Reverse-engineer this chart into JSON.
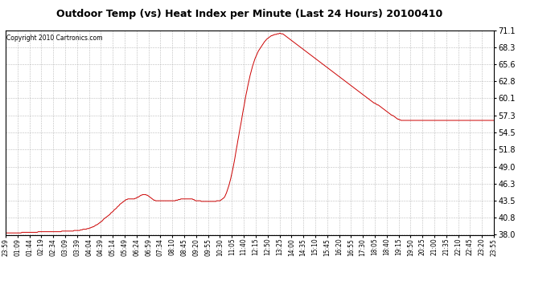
{
  "title": "Outdoor Temp (vs) Heat Index per Minute (Last 24 Hours) 20100410",
  "copyright_text": "Copyright 2010 Cartronics.com",
  "yticks": [
    38.0,
    40.8,
    43.5,
    46.3,
    49.0,
    51.8,
    54.5,
    57.3,
    60.1,
    62.8,
    65.6,
    68.3,
    71.1
  ],
  "ymin": 38.0,
  "ymax": 71.1,
  "line_color": "#cc0000",
  "background_color": "#ffffff",
  "grid_color": "#aaaaaa",
  "xtick_labels": [
    "23:59",
    "01:09",
    "01:44",
    "02:19",
    "02:34",
    "03:09",
    "03:39",
    "04:04",
    "04:39",
    "05:14",
    "05:49",
    "06:24",
    "06:59",
    "07:34",
    "08:10",
    "08:45",
    "09:20",
    "09:55",
    "10:30",
    "11:05",
    "11:40",
    "12:15",
    "12:50",
    "13:25",
    "14:00",
    "14:35",
    "15:10",
    "15:45",
    "16:20",
    "16:55",
    "17:30",
    "18:05",
    "18:40",
    "19:15",
    "19:50",
    "20:25",
    "21:00",
    "21:35",
    "22:10",
    "22:45",
    "23:20",
    "23:55"
  ],
  "num_data_points": 1440,
  "data_y": [
    38.3,
    38.3,
    38.3,
    38.3,
    38.3,
    38.3,
    38.3,
    38.3,
    38.3,
    38.3,
    38.3,
    38.3,
    38.3,
    38.3,
    38.3,
    38.3,
    38.3,
    38.3,
    38.3,
    38.3,
    38.4,
    38.4,
    38.4,
    38.4,
    38.4,
    38.4,
    38.4,
    38.4,
    38.4,
    38.4,
    38.4,
    38.4,
    38.4,
    38.4,
    38.4,
    38.4,
    38.4,
    38.4,
    38.4,
    38.4,
    38.5,
    38.5,
    38.5,
    38.5,
    38.5,
    38.5,
    38.5,
    38.5,
    38.5,
    38.5,
    38.5,
    38.5,
    38.5,
    38.5,
    38.5,
    38.5,
    38.5,
    38.5,
    38.5,
    38.5,
    38.5,
    38.5,
    38.5,
    38.5,
    38.5,
    38.5,
    38.5,
    38.5,
    38.5,
    38.6,
    38.6,
    38.6,
    38.6,
    38.6,
    38.6,
    38.6,
    38.6,
    38.6,
    38.6,
    38.6,
    38.6,
    38.6,
    38.6,
    38.6,
    38.7,
    38.7,
    38.7,
    38.7,
    38.7,
    38.7,
    38.7,
    38.7,
    38.8,
    38.8,
    38.8,
    38.9,
    38.9,
    38.9,
    38.9,
    38.9,
    39.0,
    39.0,
    39.0,
    39.1,
    39.1,
    39.2,
    39.2,
    39.3,
    39.3,
    39.4,
    39.5,
    39.6,
    39.6,
    39.7,
    39.8,
    39.9,
    40.0,
    40.1,
    40.2,
    40.3,
    40.5,
    40.6,
    40.7,
    40.8,
    40.9,
    41.0,
    41.1,
    41.2,
    41.3,
    41.5,
    41.6,
    41.7,
    41.8,
    42.0,
    42.1,
    42.2,
    42.3,
    42.5,
    42.6,
    42.7,
    42.9,
    43.0,
    43.1,
    43.2,
    43.3,
    43.4,
    43.5,
    43.6,
    43.7,
    43.7,
    43.8,
    43.8,
    43.8,
    43.8,
    43.8,
    43.8,
    43.8,
    43.8,
    43.8,
    43.9,
    43.9,
    44.0,
    44.1,
    44.1,
    44.2,
    44.3,
    44.4,
    44.4,
    44.5,
    44.5,
    44.5,
    44.5,
    44.5,
    44.4,
    44.4,
    44.3,
    44.2,
    44.1,
    44.0,
    43.9,
    43.8,
    43.7,
    43.6,
    43.6,
    43.5,
    43.5,
    43.5,
    43.5,
    43.5,
    43.5,
    43.5,
    43.5,
    43.5,
    43.5,
    43.5,
    43.5,
    43.5,
    43.5,
    43.5,
    43.5,
    43.5,
    43.5,
    43.5,
    43.5,
    43.5,
    43.5,
    43.5,
    43.5,
    43.5,
    43.6,
    43.6,
    43.6,
    43.7,
    43.7,
    43.7,
    43.8,
    43.8,
    43.8,
    43.8,
    43.8,
    43.8,
    43.8,
    43.8,
    43.8,
    43.8,
    43.8,
    43.8,
    43.8,
    43.8,
    43.8,
    43.7,
    43.7,
    43.6,
    43.5,
    43.5,
    43.5,
    43.5,
    43.5,
    43.5,
    43.5,
    43.4,
    43.4,
    43.4,
    43.4,
    43.4,
    43.4,
    43.4,
    43.4,
    43.4,
    43.4,
    43.4,
    43.4,
    43.4,
    43.4,
    43.4,
    43.4,
    43.4,
    43.4,
    43.4,
    43.5,
    43.5,
    43.5,
    43.5,
    43.5,
    43.6,
    43.7,
    43.8,
    43.9,
    44.0,
    44.2,
    44.5,
    44.8,
    45.2,
    45.6,
    46.0,
    46.5,
    47.0,
    47.6,
    48.2,
    48.8,
    49.5,
    50.2,
    51.0,
    51.8,
    52.5,
    53.3,
    54.0,
    54.8,
    55.5,
    56.2,
    57.0,
    57.8,
    58.5,
    59.2,
    60.0,
    60.7,
    61.3,
    62.0,
    62.6,
    63.2,
    63.8,
    64.3,
    64.8,
    65.3,
    65.7,
    66.1,
    66.5,
    66.8,
    67.1,
    67.4,
    67.7,
    67.9,
    68.1,
    68.3,
    68.5,
    68.7,
    68.9,
    69.1,
    69.3,
    69.4,
    69.6,
    69.7,
    69.8,
    69.9,
    70.0,
    70.1,
    70.2,
    70.2,
    70.3,
    70.3,
    70.4,
    70.4,
    70.4,
    70.5,
    70.5,
    70.5,
    70.6,
    70.6,
    70.5,
    70.5,
    70.5,
    70.4,
    70.3,
    70.2,
    70.1,
    70.0,
    69.9,
    69.8,
    69.7,
    69.6,
    69.5,
    69.4,
    69.3,
    69.2,
    69.1,
    69.0,
    68.9,
    68.8,
    68.7,
    68.6,
    68.5,
    68.4,
    68.3,
    68.2,
    68.1,
    68.0,
    67.9,
    67.8,
    67.7,
    67.6,
    67.5,
    67.4,
    67.3,
    67.2,
    67.1,
    67.0,
    66.9,
    66.8,
    66.7,
    66.6,
    66.5,
    66.4,
    66.3,
    66.2,
    66.1,
    66.0,
    65.9,
    65.8,
    65.7,
    65.6,
    65.5,
    65.4,
    65.3,
    65.2,
    65.1,
    65.0,
    64.9,
    64.8,
    64.7,
    64.6,
    64.5,
    64.4,
    64.3,
    64.2,
    64.1,
    64.0,
    63.9,
    63.8,
    63.7,
    63.6,
    63.5,
    63.4,
    63.3,
    63.2,
    63.1,
    63.0,
    62.9,
    62.8,
    62.7,
    62.6,
    62.5,
    62.4,
    62.3,
    62.2,
    62.1,
    62.0,
    61.9,
    61.8,
    61.7,
    61.6,
    61.5,
    61.4,
    61.3,
    61.2,
    61.1,
    61.0,
    60.9,
    60.8,
    60.7,
    60.6,
    60.5,
    60.4,
    60.3,
    60.2,
    60.1,
    60.0,
    59.9,
    59.8,
    59.7,
    59.6,
    59.5,
    59.4,
    59.3,
    59.3,
    59.2,
    59.1,
    59.0,
    59.0,
    58.9,
    58.8,
    58.7,
    58.6,
    58.5,
    58.4,
    58.3,
    58.2,
    58.1,
    58.0,
    57.9,
    57.8,
    57.7,
    57.6,
    57.5,
    57.4,
    57.3,
    57.3,
    57.2,
    57.1,
    57.0,
    56.9,
    56.8,
    56.7,
    56.7,
    56.6,
    56.6,
    56.5,
    56.5,
    56.5,
    56.5,
    56.5,
    56.5,
    56.5,
    56.5,
    56.5,
    56.5,
    56.5,
    56.5,
    56.5,
    56.5,
    56.5,
    56.5,
    56.5,
    56.5,
    56.5,
    56.5,
    56.5,
    56.5,
    56.5,
    56.5,
    56.5,
    56.5,
    56.5,
    56.5,
    56.5,
    56.5,
    56.5,
    56.5,
    56.5,
    56.5,
    56.5,
    56.5,
    56.5,
    56.5,
    56.5,
    56.5,
    56.5,
    56.5,
    56.5,
    56.5,
    56.5,
    56.5,
    56.5,
    56.5,
    56.5,
    56.5,
    56.5,
    56.5,
    56.5,
    56.5,
    56.5,
    56.5,
    56.5,
    56.5,
    56.5,
    56.5,
    56.5,
    56.5,
    56.5,
    56.5,
    56.5,
    56.5,
    56.5,
    56.5,
    56.5,
    56.5,
    56.5,
    56.5,
    56.5,
    56.5,
    56.5,
    56.5,
    56.5,
    56.5,
    56.5,
    56.5,
    56.5,
    56.5,
    56.5,
    56.5,
    56.5,
    56.5,
    56.5,
    56.5,
    56.5,
    56.5,
    56.5,
    56.5,
    56.5,
    56.5,
    56.5,
    56.5,
    56.5,
    56.5,
    56.5,
    56.5,
    56.5,
    56.5,
    56.5,
    56.5,
    56.5,
    56.5,
    56.5,
    56.5,
    56.5,
    56.5,
    56.5,
    56.5,
    56.5,
    56.5,
    56.5
  ]
}
